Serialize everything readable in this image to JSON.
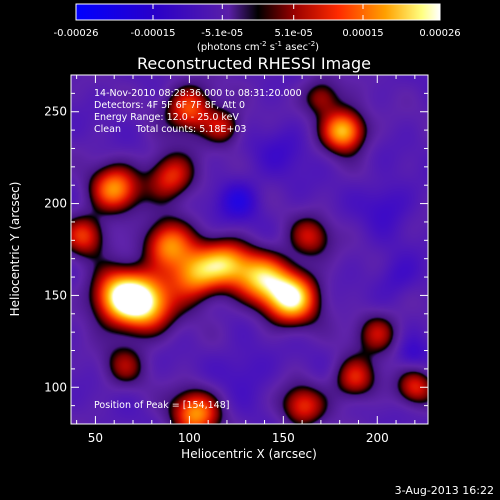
{
  "chart_data": {
    "type": "heatmap",
    "title": "Reconstructed RHESSI Image",
    "xlabel": "Heliocentric X (arcsec)",
    "ylabel": "Heliocentric Y (arcsec)",
    "xlim": [
      37,
      227
    ],
    "ylim": [
      80,
      270
    ],
    "xticks": [
      50,
      100,
      150,
      200
    ],
    "yticks": [
      100,
      150,
      200,
      250
    ],
    "colorbar": {
      "ticks": [
        "-0.00026",
        "-0.00015",
        "-5.1e-05",
        "5.1e-05",
        "0.00015",
        "0.00026"
      ],
      "range": [
        -0.00026,
        0.00026
      ],
      "unit_text": "(photons cm-2 s-1 asec-2)",
      "unit_parts": [
        "(photons cm",
        "-2",
        " s",
        "-1",
        " asec",
        "-2",
        ")"
      ]
    },
    "annotations": [
      "14-Nov-2010 08:28:36.000 to 08:31:20.000",
      "Detectors: 4F 5F 6F 7F 8F, Att 0",
      "Energy Range: 12.0 - 25.0 keV",
      "Clean     Total counts: 5.18E+03"
    ],
    "position_of_peak": "Position of Peak = [154,148]",
    "peak": {
      "x": 154,
      "y": 148
    },
    "blobs": [
      {
        "x": 75,
        "y": 146,
        "amp": 1.0,
        "sigma": 11
      },
      {
        "x": 61,
        "y": 150,
        "amp": 0.75,
        "sigma": 10
      },
      {
        "x": 154,
        "y": 149,
        "amp": 1.0,
        "sigma": 10
      },
      {
        "x": 138,
        "y": 160,
        "amp": 0.75,
        "sigma": 10
      },
      {
        "x": 103,
        "y": 162,
        "amp": 0.8,
        "sigma": 10
      },
      {
        "x": 120,
        "y": 168,
        "amp": 0.65,
        "sigma": 9
      },
      {
        "x": 88,
        "y": 178,
        "amp": 0.7,
        "sigma": 9
      },
      {
        "x": 60,
        "y": 208,
        "amp": 0.75,
        "sigma": 9
      },
      {
        "x": 44,
        "y": 183,
        "amp": 0.55,
        "sigma": 8
      },
      {
        "x": 90,
        "y": 215,
        "amp": 0.6,
        "sigma": 9
      },
      {
        "x": 100,
        "y": 252,
        "amp": 0.65,
        "sigma": 9
      },
      {
        "x": 118,
        "y": 242,
        "amp": 0.45,
        "sigma": 7
      },
      {
        "x": 182,
        "y": 240,
        "amp": 0.9,
        "sigma": 8
      },
      {
        "x": 170,
        "y": 258,
        "amp": 0.45,
        "sigma": 7
      },
      {
        "x": 164,
        "y": 182,
        "amp": 0.45,
        "sigma": 8
      },
      {
        "x": 200,
        "y": 130,
        "amp": 0.45,
        "sigma": 8
      },
      {
        "x": 188,
        "y": 105,
        "amp": 0.55,
        "sigma": 8
      },
      {
        "x": 220,
        "y": 100,
        "amp": 0.5,
        "sigma": 7
      },
      {
        "x": 160,
        "y": 90,
        "amp": 0.55,
        "sigma": 8
      },
      {
        "x": 103,
        "y": 86,
        "amp": 0.75,
        "sigma": 9
      },
      {
        "x": 65,
        "y": 112,
        "amp": 0.35,
        "sigma": 8
      },
      {
        "x": 126,
        "y": 202,
        "amp": -0.3,
        "sigma": 8
      },
      {
        "x": 205,
        "y": 200,
        "amp": -0.2,
        "sigma": 9
      },
      {
        "x": 150,
        "y": 230,
        "amp": -0.15,
        "sigma": 10
      },
      {
        "x": 210,
        "y": 160,
        "amp": -0.18,
        "sigma": 8
      },
      {
        "x": 130,
        "y": 110,
        "amp": -0.15,
        "sigma": 10
      },
      {
        "x": 218,
        "y": 118,
        "amp": -0.2,
        "sigma": 6
      }
    ]
  },
  "footer_date": "3-Aug-2013 16:22"
}
